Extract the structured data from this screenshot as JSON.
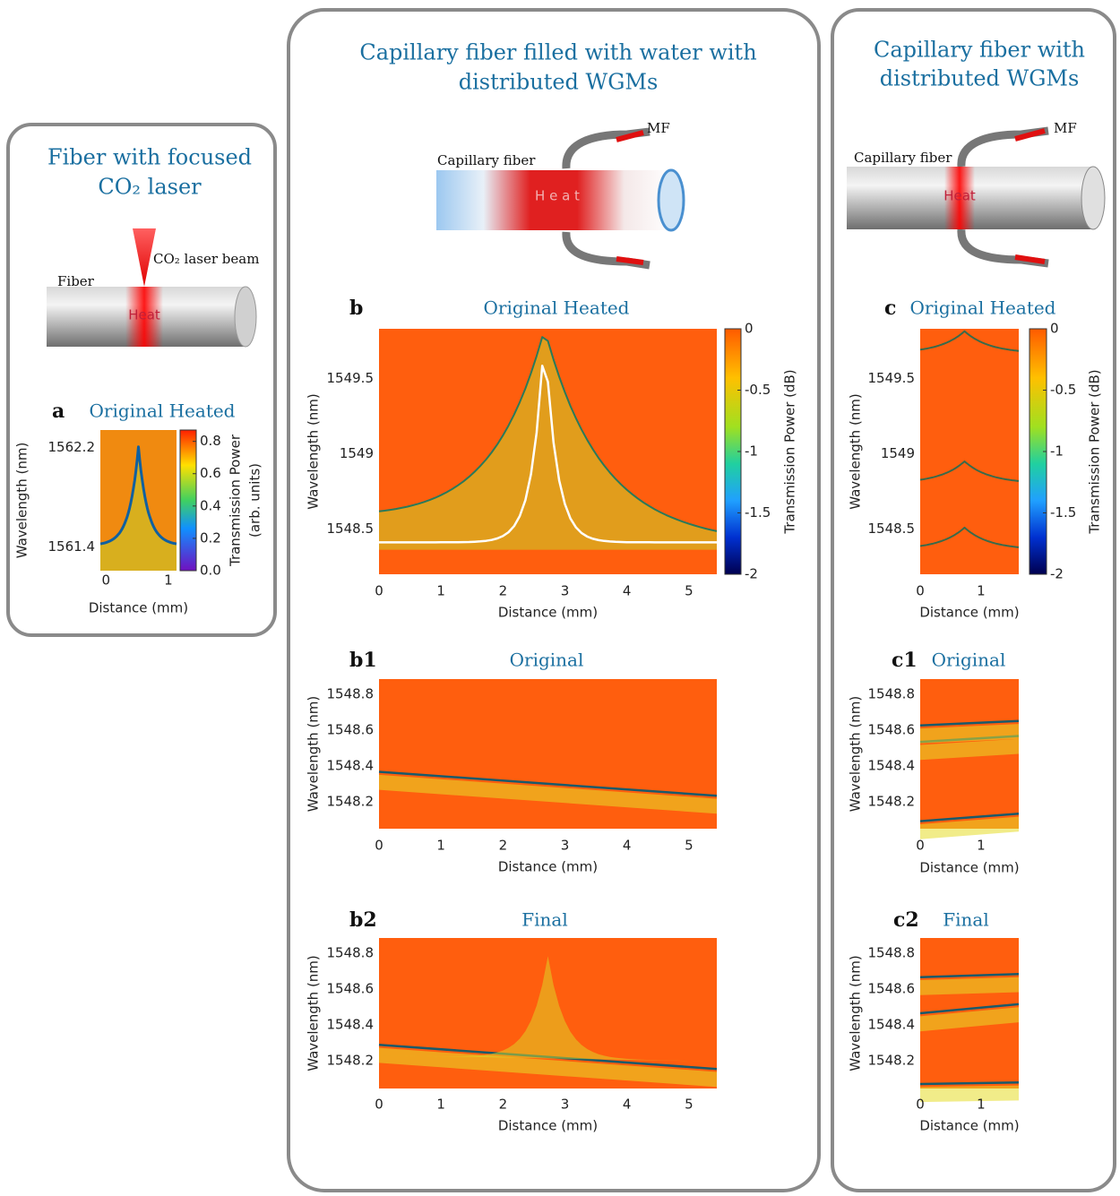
{
  "panels": [
    {
      "title": [
        "Fiber with focused",
        "CO₂ laser"
      ],
      "diagram": {
        "beam": "CO₂ laser beam",
        "fiber": "Fiber",
        "heat": "Heat"
      },
      "plots": [
        {
          "letter": "a",
          "title": "Original Heated",
          "ylabel": "Wavelength (nm)",
          "xlabel": "Distance (mm)",
          "xlim": [
            -0.09,
            1.13
          ],
          "ylim": [
            1561.21,
            1562.34
          ],
          "xticks": [
            0,
            1
          ],
          "yticks": [
            1562.2,
            1561.4
          ],
          "colorbar": {
            "label": [
              "Transmission Power",
              "(arb. units)"
            ],
            "lim": [
              0,
              0.87
            ],
            "ticks": [
              0.8,
              0.6,
              0.4,
              0.2,
              {
                "value": 0,
                "label": "0.0"
              }
            ]
          }
        }
      ]
    },
    {
      "title": [
        "Capillary fiber filled with water with",
        "distributed WGMs"
      ],
      "diagram": {
        "fiber": "Capillary fiber",
        "heat": "H e a t",
        "mf": "MF"
      },
      "plots": [
        {
          "letter": "b",
          "title": "Original Heated",
          "ylabel": "Wavelength (nm)",
          "xlabel": "Distance (mm)",
          "xlim": [
            0,
            5.45
          ],
          "ylim": [
            1548.2,
            1549.83
          ],
          "xticks": [
            0,
            1,
            2,
            3,
            4,
            5
          ],
          "yticks": [
            1549.5,
            1549,
            1548.5
          ],
          "colorbar": {
            "label": [
              "Transmission Power (dB)"
            ],
            "lim": [
              -2,
              0
            ],
            "ticks": [
              0,
              -0.5,
              -1,
              -1.5,
              -2
            ]
          }
        },
        {
          "letter": "b1",
          "title": "Original",
          "ylabel": "Wavelength (nm)",
          "xlabel": "Distance (mm)",
          "xlim": [
            0,
            5.45
          ],
          "ylim": [
            1548.05,
            1548.885
          ],
          "xticks": [
            0,
            1,
            2,
            3,
            4,
            5
          ],
          "yticks": [
            1548.8,
            1548.6,
            1548.4,
            1548.2
          ]
        },
        {
          "letter": "b2",
          "title": "Final",
          "ylabel": "Wavelength (nm)",
          "xlabel": "Distance (mm)",
          "xlim": [
            0,
            5.45
          ],
          "ylim": [
            1548.045,
            1548.885
          ],
          "xticks": [
            0,
            1,
            2,
            3,
            4,
            5
          ],
          "yticks": [
            1548.8,
            1548.6,
            1548.4,
            1548.2
          ]
        }
      ]
    },
    {
      "title": [
        "Capillary fiber with",
        "distributed WGMs"
      ],
      "diagram": {
        "fiber": "Capillary fiber",
        "heat": "Heat",
        "mf": "MF"
      },
      "plots": [
        {
          "letter": "c",
          "title": "Original Heated",
          "ylabel": "Wavelength (nm)",
          "xlabel": "Distance (mm)",
          "xlim": [
            0,
            1.62
          ],
          "ylim": [
            1548.2,
            1549.83
          ],
          "xticks": [
            0,
            1
          ],
          "yticks": [
            1549.5,
            1549,
            1548.5
          ],
          "colorbar": {
            "label": [
              "Transmission Power (dB)"
            ],
            "lim": [
              -2,
              0
            ],
            "ticks": [
              0,
              -0.5,
              -1,
              -1.5,
              -2
            ]
          }
        },
        {
          "letter": "c1",
          "title": "Original",
          "ylabel": "Wavelength (nm)",
          "xlabel": "Distance (mm)",
          "xlim": [
            0,
            1.62
          ],
          "ylim": [
            1548.05,
            1548.885
          ],
          "xticks": [
            0,
            1
          ],
          "yticks": [
            1548.8,
            1548.6,
            1548.4,
            1548.2
          ]
        },
        {
          "letter": "c2",
          "title": "Final",
          "ylabel": "Wavelength (nm)",
          "xlabel": "Distance (mm)",
          "xlim": [
            0,
            1.62
          ],
          "ylim": [
            1548.045,
            1548.885
          ],
          "xticks": [
            0,
            1
          ],
          "yticks": [
            1548.8,
            1548.6,
            1548.4,
            1548.2
          ]
        }
      ]
    }
  ]
}
